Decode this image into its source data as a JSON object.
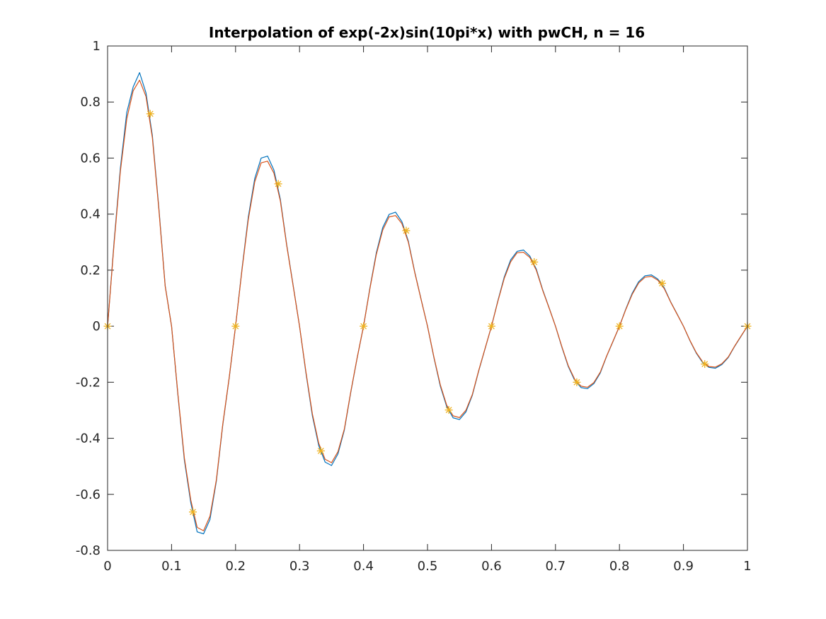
{
  "chart_data": {
    "type": "line",
    "title": "Interpolation of exp(-2x)sin(10pi*x) with pwCH, n = 16",
    "xlabel": "",
    "ylabel": "",
    "xlim": [
      0,
      1
    ],
    "ylim": [
      -0.8,
      1
    ],
    "xticks": [
      0,
      0.1,
      0.2,
      0.3,
      0.4,
      0.5,
      0.6,
      0.7,
      0.8,
      0.9,
      1
    ],
    "xtick_labels": [
      "0",
      "0.1",
      "0.2",
      "0.3",
      "0.4",
      "0.5",
      "0.6",
      "0.7",
      "0.8",
      "0.9",
      "1"
    ],
    "yticks": [
      -0.8,
      -0.6,
      -0.4,
      -0.2,
      0,
      0.2,
      0.4,
      0.6,
      0.8,
      1
    ],
    "ytick_labels": [
      "-0.8",
      "-0.6",
      "-0.4",
      "-0.2",
      "0",
      "0.2",
      "0.4",
      "0.6",
      "0.8",
      "1"
    ],
    "grid": false,
    "legend": "none",
    "series": [
      {
        "color": "#0072BD",
        "style": "line",
        "x": [
          0,
          0.01,
          0.02,
          0.03,
          0.04,
          0.05,
          0.06,
          0.07,
          0.08,
          0.09,
          0.1,
          0.11,
          0.12,
          0.13,
          0.14,
          0.15,
          0.16,
          0.17,
          0.18,
          0.19,
          0.2,
          0.21,
          0.22,
          0.23,
          0.24,
          0.25,
          0.26,
          0.27,
          0.28,
          0.29,
          0.3,
          0.31,
          0.32,
          0.33,
          0.34,
          0.35,
          0.36,
          0.37,
          0.38,
          0.39,
          0.4,
          0.41,
          0.42,
          0.43,
          0.44,
          0.45,
          0.46,
          0.47,
          0.48,
          0.49,
          0.5,
          0.51,
          0.52,
          0.53,
          0.54,
          0.55,
          0.56,
          0.57,
          0.58,
          0.59,
          0.6,
          0.61,
          0.62,
          0.63,
          0.64,
          0.65,
          0.66,
          0.67,
          0.68,
          0.69,
          0.7,
          0.71,
          0.72,
          0.73,
          0.74,
          0.75,
          0.76,
          0.77,
          0.78,
          0.79,
          0.8,
          0.81,
          0.82,
          0.83,
          0.84,
          0.85,
          0.86,
          0.87,
          0.88,
          0.89,
          0.9,
          0.91,
          0.92,
          0.93,
          0.94,
          0.95,
          0.96,
          0.97,
          0.98,
          0.99,
          1
        ],
        "y": [
          0,
          0.297,
          0.565,
          0.763,
          0.854,
          0.905,
          0.833,
          0.68,
          0.426,
          0.145,
          0,
          -0.248,
          -0.478,
          -0.63,
          -0.734,
          -0.741,
          -0.69,
          -0.553,
          -0.353,
          -0.186,
          0,
          0.203,
          0.391,
          0.527,
          0.6,
          0.607,
          0.557,
          0.453,
          0.29,
          0.146,
          0,
          -0.167,
          -0.319,
          -0.426,
          -0.485,
          -0.497,
          -0.456,
          -0.371,
          -0.237,
          -0.114,
          0,
          0.137,
          0.262,
          0.352,
          0.399,
          0.407,
          0.373,
          0.304,
          0.194,
          0.096,
          0,
          -0.112,
          -0.214,
          -0.287,
          -0.327,
          -0.333,
          -0.306,
          -0.247,
          -0.16,
          -0.08,
          0,
          0.091,
          0.176,
          0.237,
          0.267,
          0.272,
          0.25,
          0.204,
          0.13,
          0.066,
          0,
          -0.075,
          -0.144,
          -0.193,
          -0.219,
          -0.223,
          -0.205,
          -0.167,
          -0.107,
          -0.054,
          0,
          0.062,
          0.118,
          0.159,
          0.18,
          0.183,
          0.168,
          0.137,
          0.087,
          0.044,
          0,
          -0.051,
          -0.096,
          -0.13,
          -0.147,
          -0.15,
          -0.137,
          -0.112,
          -0.072,
          -0.036,
          0
        ]
      },
      {
        "color": "#D95319",
        "style": "line",
        "x": [
          0,
          0.01,
          0.02,
          0.03,
          0.04,
          0.05,
          0.06,
          0.07,
          0.08,
          0.09,
          0.1,
          0.11,
          0.12,
          0.13,
          0.14,
          0.15,
          0.16,
          0.17,
          0.18,
          0.19,
          0.2,
          0.21,
          0.22,
          0.23,
          0.24,
          0.25,
          0.26,
          0.27,
          0.28,
          0.29,
          0.3,
          0.31,
          0.32,
          0.33,
          0.34,
          0.35,
          0.36,
          0.37,
          0.38,
          0.39,
          0.4,
          0.41,
          0.42,
          0.43,
          0.44,
          0.45,
          0.46,
          0.47,
          0.48,
          0.49,
          0.5,
          0.51,
          0.52,
          0.53,
          0.54,
          0.55,
          0.56,
          0.57,
          0.58,
          0.59,
          0.6,
          0.61,
          0.62,
          0.63,
          0.64,
          0.65,
          0.66,
          0.67,
          0.68,
          0.69,
          0.7,
          0.71,
          0.72,
          0.73,
          0.74,
          0.75,
          0.76,
          0.77,
          0.78,
          0.79,
          0.8,
          0.81,
          0.82,
          0.83,
          0.84,
          0.85,
          0.86,
          0.87,
          0.88,
          0.89,
          0.9,
          0.91,
          0.92,
          0.93,
          0.94,
          0.95,
          0.96,
          0.97,
          0.98,
          0.99,
          1
        ],
        "y": [
          0,
          0.29,
          0.553,
          0.74,
          0.84,
          0.878,
          0.82,
          0.672,
          0.42,
          0.143,
          0,
          -0.244,
          -0.47,
          -0.62,
          -0.718,
          -0.73,
          -0.678,
          -0.548,
          -0.35,
          -0.184,
          0,
          0.199,
          0.382,
          0.515,
          0.583,
          0.589,
          0.546,
          0.447,
          0.287,
          0.144,
          0,
          -0.163,
          -0.312,
          -0.418,
          -0.475,
          -0.487,
          -0.448,
          -0.367,
          -0.235,
          -0.113,
          0,
          0.134,
          0.256,
          0.343,
          0.39,
          0.395,
          0.366,
          0.3,
          0.192,
          0.095,
          0,
          -0.11,
          -0.209,
          -0.282,
          -0.32,
          -0.326,
          -0.3,
          -0.244,
          -0.158,
          -0.079,
          0,
          0.089,
          0.171,
          0.23,
          0.262,
          0.264,
          0.245,
          0.2,
          0.128,
          0.065,
          0,
          -0.073,
          -0.141,
          -0.189,
          -0.214,
          -0.218,
          -0.201,
          -0.164,
          -0.106,
          -0.053,
          0,
          0.06,
          0.114,
          0.154,
          0.175,
          0.178,
          0.164,
          0.134,
          0.086,
          0.043,
          0,
          -0.05,
          -0.094,
          -0.127,
          -0.144,
          -0.146,
          -0.134,
          -0.11,
          -0.071,
          -0.035,
          0
        ]
      },
      {
        "color": "#EDB120",
        "style": "marker-asterisk",
        "x": [
          0,
          0.0667,
          0.1333,
          0.2,
          0.2667,
          0.3333,
          0.4,
          0.4667,
          0.5333,
          0.6,
          0.6667,
          0.7333,
          0.8,
          0.8667,
          0.9333,
          1
        ],
        "y": [
          0,
          0.758,
          -0.663,
          0,
          0.508,
          -0.445,
          0,
          0.341,
          -0.299,
          0,
          0.229,
          -0.2,
          0,
          0.153,
          -0.135,
          0
        ]
      }
    ]
  }
}
